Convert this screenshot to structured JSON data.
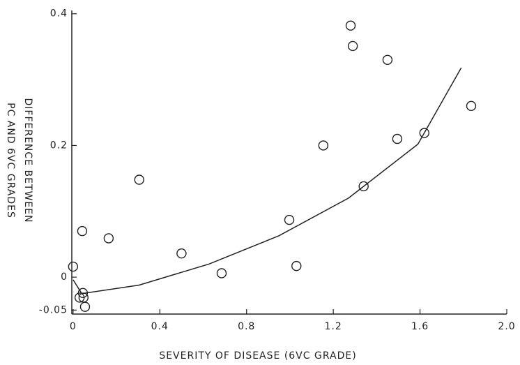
{
  "chart_data": {
    "type": "scatter",
    "xlabel": "SEVERITY OF DISEASE (6VC GRADE)",
    "ylabel": [
      "DIFFERENCE BETWEEN",
      "PC AND 6VC GRADES"
    ],
    "xlim": [
      -0.006,
      2.0
    ],
    "ylim": [
      -0.056,
      0.405
    ],
    "xticks": [
      0,
      0.4,
      0.8,
      1.2,
      1.6,
      {
        "value": 2,
        "label": "2.0"
      }
    ],
    "yticks": [
      -0.05,
      0,
      0.2,
      0.4
    ],
    "color": "#222",
    "x": [
      0,
      0.045,
      0.03,
      0.048,
      0.055,
      0.042,
      0.164,
      0.305,
      0.5,
      0.685,
      0.997,
      1.03,
      1.154,
      1.28,
      1.29,
      1.34,
      1.45,
      1.495,
      1.62,
      1.836
    ],
    "values": [
      0.016,
      -0.024,
      -0.031,
      -0.031,
      -0.045,
      0.07,
      0.059,
      0.148,
      0.036,
      0.006,
      0.087,
      0.017,
      0.2,
      0.382,
      0.351,
      0.138,
      0.33,
      0.21,
      0.219,
      0.26
    ],
    "curve": {
      "x": [
        0,
        0.04,
        0.305,
        0.627,
        0.95,
        1.27,
        1.59,
        1.79
      ],
      "values": [
        -0.004,
        -0.025,
        -0.012,
        0.02,
        0.063,
        0.12,
        0.202,
        0.318
      ]
    }
  }
}
